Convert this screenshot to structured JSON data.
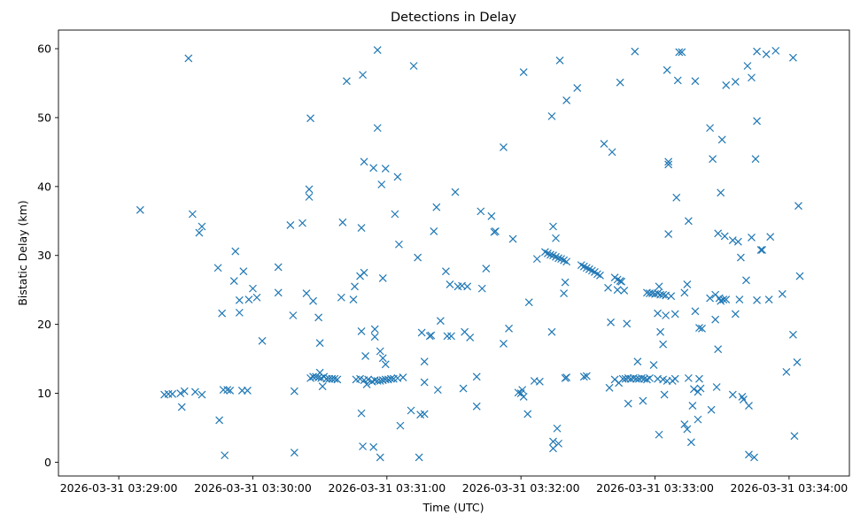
{
  "chart_data": {
    "type": "scatter",
    "title": "Detections in Delay",
    "xlabel": "Time (UTC)",
    "ylabel": "Bistatic Delay (km)",
    "marker": "x",
    "color": "#1f77b4",
    "x_unit": "minutes since 2026-03-31 03:29:00",
    "xlim": [
      -0.45,
      5.45
    ],
    "ylim": [
      -2.0,
      62.7
    ],
    "x_ticks": [
      {
        "value": 0,
        "label": "2026-03-31 03:29:00"
      },
      {
        "value": 1,
        "label": "2026-03-31 03:30:00"
      },
      {
        "value": 2,
        "label": "2026-03-31 03:31:00"
      },
      {
        "value": 3,
        "label": "2026-03-31 03:32:00"
      },
      {
        "value": 4,
        "label": "2026-03-31 03:33:00"
      },
      {
        "value": 5,
        "label": "2026-03-31 03:34:00"
      }
    ],
    "y_ticks": [
      {
        "value": 0,
        "label": "0"
      },
      {
        "value": 10,
        "label": "10"
      },
      {
        "value": 20,
        "label": "20"
      },
      {
        "value": 30,
        "label": "30"
      },
      {
        "value": 40,
        "label": "40"
      },
      {
        "value": 50,
        "label": "50"
      },
      {
        "value": 60,
        "label": "60"
      }
    ],
    "points": [
      [
        0.16,
        36.6
      ],
      [
        0.52,
        58.6
      ],
      [
        0.55,
        36.0
      ],
      [
        0.6,
        33.3
      ],
      [
        0.62,
        34.2
      ],
      [
        0.34,
        9.8
      ],
      [
        0.37,
        9.9
      ],
      [
        0.4,
        9.9
      ],
      [
        0.46,
        10.0
      ],
      [
        0.49,
        10.3
      ],
      [
        0.57,
        10.2
      ],
      [
        0.62,
        9.8
      ],
      [
        0.47,
        8.0
      ],
      [
        0.74,
        28.2
      ],
      [
        0.77,
        21.6
      ],
      [
        0.79,
        1.0
      ],
      [
        0.83,
        10.4
      ],
      [
        0.78,
        10.5
      ],
      [
        0.81,
        10.5
      ],
      [
        0.75,
        6.1
      ],
      [
        0.87,
        30.6
      ],
      [
        0.86,
        26.3
      ],
      [
        0.9,
        23.5
      ],
      [
        0.9,
        21.7
      ],
      [
        0.93,
        27.7
      ],
      [
        0.92,
        10.4
      ],
      [
        0.96,
        10.4
      ],
      [
        0.97,
        23.6
      ],
      [
        1.0,
        25.2
      ],
      [
        1.03,
        23.9
      ],
      [
        1.07,
        17.6
      ],
      [
        1.19,
        28.3
      ],
      [
        1.19,
        24.6
      ],
      [
        1.28,
        34.4
      ],
      [
        1.3,
        21.3
      ],
      [
        1.31,
        10.3
      ],
      [
        1.31,
        1.4
      ],
      [
        1.37,
        34.7
      ],
      [
        1.4,
        24.5
      ],
      [
        1.42,
        39.6
      ],
      [
        1.42,
        38.5
      ],
      [
        1.43,
        49.9
      ],
      [
        1.45,
        23.4
      ],
      [
        1.49,
        21.0
      ],
      [
        1.5,
        17.3
      ],
      [
        1.43,
        12.2
      ],
      [
        1.45,
        12.4
      ],
      [
        1.47,
        12.4
      ],
      [
        1.49,
        12.3
      ],
      [
        1.5,
        13.0
      ],
      [
        1.51,
        12.2
      ],
      [
        1.52,
        11.0
      ],
      [
        1.53,
        12.4
      ],
      [
        1.55,
        12.1
      ],
      [
        1.57,
        12.1
      ],
      [
        1.59,
        12.1
      ],
      [
        1.61,
        12.1
      ],
      [
        1.63,
        12.0
      ],
      [
        1.66,
        23.9
      ],
      [
        1.67,
        34.8
      ],
      [
        1.7,
        55.3
      ],
      [
        1.75,
        23.6
      ],
      [
        1.76,
        25.5
      ],
      [
        1.8,
        27.0
      ],
      [
        1.81,
        34.0
      ],
      [
        1.81,
        19.0
      ],
      [
        1.84,
        15.4
      ],
      [
        1.81,
        7.1
      ],
      [
        1.82,
        2.3
      ],
      [
        1.77,
        12.0
      ],
      [
        1.8,
        12.1
      ],
      [
        1.83,
        11.9
      ],
      [
        1.85,
        11.3
      ],
      [
        1.83,
        43.6
      ],
      [
        1.82,
        56.2
      ],
      [
        1.83,
        27.5
      ],
      [
        1.86,
        12.0
      ],
      [
        1.89,
        11.7
      ],
      [
        1.91,
        11.9
      ],
      [
        1.93,
        11.8
      ],
      [
        1.95,
        11.8
      ],
      [
        1.97,
        11.9
      ],
      [
        1.99,
        12.0
      ],
      [
        2.01,
        12.0
      ],
      [
        2.03,
        12.1
      ],
      [
        2.05,
        12.1
      ],
      [
        2.08,
        12.2
      ],
      [
        1.9,
        42.7
      ],
      [
        1.93,
        59.8
      ],
      [
        1.93,
        48.5
      ],
      [
        1.91,
        19.3
      ],
      [
        1.91,
        18.2
      ],
      [
        1.95,
        16.1
      ],
      [
        1.97,
        15.1
      ],
      [
        1.99,
        14.2
      ],
      [
        1.9,
        2.2
      ],
      [
        1.95,
        0.7
      ],
      [
        1.96,
        40.3
      ],
      [
        1.99,
        42.6
      ],
      [
        1.97,
        26.7
      ],
      [
        2.06,
        36.0
      ],
      [
        2.08,
        41.4
      ],
      [
        2.09,
        31.6
      ],
      [
        2.12,
        12.3
      ],
      [
        2.1,
        5.3
      ],
      [
        2.18,
        7.5
      ],
      [
        2.2,
        57.5
      ],
      [
        2.23,
        29.7
      ],
      [
        2.24,
        0.7
      ],
      [
        2.26,
        18.8
      ],
      [
        2.25,
        6.9
      ],
      [
        2.28,
        7.0
      ],
      [
        2.28,
        11.6
      ],
      [
        2.28,
        14.6
      ],
      [
        2.32,
        18.3
      ],
      [
        2.33,
        18.4
      ],
      [
        2.35,
        33.5
      ],
      [
        2.37,
        37.0
      ],
      [
        2.38,
        10.5
      ],
      [
        2.4,
        20.5
      ],
      [
        2.44,
        27.7
      ],
      [
        2.45,
        18.3
      ],
      [
        2.48,
        18.3
      ],
      [
        2.47,
        25.8
      ],
      [
        2.51,
        39.2
      ],
      [
        2.53,
        25.5
      ],
      [
        2.56,
        25.6
      ],
      [
        2.57,
        10.7
      ],
      [
        2.58,
        18.9
      ],
      [
        2.6,
        25.5
      ],
      [
        2.62,
        18.1
      ],
      [
        2.67,
        8.1
      ],
      [
        2.67,
        12.4
      ],
      [
        2.7,
        36.4
      ],
      [
        2.71,
        25.2
      ],
      [
        2.74,
        28.1
      ],
      [
        2.78,
        35.7
      ],
      [
        2.8,
        33.4
      ],
      [
        2.81,
        33.5
      ],
      [
        2.87,
        45.7
      ],
      [
        2.87,
        17.2
      ],
      [
        2.91,
        19.4
      ],
      [
        2.94,
        32.4
      ],
      [
        2.98,
        10.1
      ],
      [
        3.0,
        10.0
      ],
      [
        3.01,
        10.5
      ],
      [
        3.02,
        9.5
      ],
      [
        3.02,
        56.6
      ],
      [
        3.05,
        7.0
      ],
      [
        3.06,
        23.2
      ],
      [
        3.1,
        11.8
      ],
      [
        3.14,
        11.7
      ],
      [
        3.12,
        29.5
      ],
      [
        3.18,
        30.5
      ],
      [
        3.2,
        30.3
      ],
      [
        3.22,
        30.1
      ],
      [
        3.24,
        30.0
      ],
      [
        3.26,
        29.8
      ],
      [
        3.28,
        29.6
      ],
      [
        3.3,
        29.5
      ],
      [
        3.32,
        29.3
      ],
      [
        3.34,
        29.1
      ],
      [
        3.24,
        3.0
      ],
      [
        3.24,
        2.0
      ],
      [
        3.23,
        18.9
      ],
      [
        3.24,
        34.2
      ],
      [
        3.26,
        32.5
      ],
      [
        3.23,
        50.2
      ],
      [
        3.27,
        4.9
      ],
      [
        3.28,
        2.7
      ],
      [
        3.29,
        58.3
      ],
      [
        3.32,
        24.5
      ],
      [
        3.33,
        26.1
      ],
      [
        3.34,
        52.5
      ],
      [
        3.45,
        28.6
      ],
      [
        3.47,
        28.4
      ],
      [
        3.49,
        28.2
      ],
      [
        3.51,
        28.0
      ],
      [
        3.53,
        27.8
      ],
      [
        3.55,
        27.6
      ],
      [
        3.57,
        27.3
      ],
      [
        3.59,
        27.1
      ],
      [
        3.42,
        54.3
      ],
      [
        3.33,
        12.2
      ],
      [
        3.34,
        12.3
      ],
      [
        3.47,
        12.4
      ],
      [
        3.49,
        12.5
      ],
      [
        3.62,
        46.2
      ],
      [
        3.68,
        45.0
      ],
      [
        3.65,
        25.3
      ],
      [
        3.67,
        20.3
      ],
      [
        3.7,
        26.8
      ],
      [
        3.72,
        26.5
      ],
      [
        3.74,
        26.3
      ],
      [
        3.75,
        26.2
      ],
      [
        3.72,
        25.0
      ],
      [
        3.77,
        24.9
      ],
      [
        3.79,
        20.1
      ],
      [
        3.74,
        55.1
      ],
      [
        3.85,
        59.6
      ],
      [
        3.66,
        10.8
      ],
      [
        3.7,
        12.0
      ],
      [
        3.73,
        11.5
      ],
      [
        3.76,
        12.1
      ],
      [
        3.78,
        12.1
      ],
      [
        3.8,
        12.2
      ],
      [
        3.82,
        12.1
      ],
      [
        3.84,
        12.2
      ],
      [
        3.86,
        12.1
      ],
      [
        3.88,
        12.1
      ],
      [
        3.9,
        12.2
      ],
      [
        3.92,
        12.1
      ],
      [
        3.94,
        12.0
      ],
      [
        3.96,
        12.2
      ],
      [
        3.8,
        8.5
      ],
      [
        3.87,
        14.6
      ],
      [
        3.91,
        8.9
      ],
      [
        3.99,
        14.1
      ],
      [
        3.94,
        24.6
      ],
      [
        3.96,
        24.5
      ],
      [
        3.98,
        24.5
      ],
      [
        4.0,
        24.4
      ],
      [
        4.02,
        24.5
      ],
      [
        4.04,
        24.3
      ],
      [
        4.06,
        24.3
      ],
      [
        4.08,
        24.2
      ],
      [
        4.12,
        24.1
      ],
      [
        4.02,
        21.6
      ],
      [
        4.04,
        18.9
      ],
      [
        4.06,
        17.1
      ],
      [
        4.03,
        25.5
      ],
      [
        4.08,
        21.3
      ],
      [
        4.02,
        12.1
      ],
      [
        4.06,
        12.0
      ],
      [
        4.09,
        11.8
      ],
      [
        4.13,
        11.8
      ],
      [
        4.15,
        12.1
      ],
      [
        4.03,
        4.0
      ],
      [
        4.07,
        9.8
      ],
      [
        4.09,
        56.9
      ],
      [
        4.1,
        43.6
      ],
      [
        4.1,
        43.2
      ],
      [
        4.1,
        33.1
      ],
      [
        4.16,
        38.4
      ],
      [
        4.18,
        59.5
      ],
      [
        4.2,
        59.5
      ],
      [
        4.17,
        55.4
      ],
      [
        4.15,
        21.5
      ],
      [
        4.22,
        24.6
      ],
      [
        4.24,
        25.8
      ],
      [
        4.25,
        35.0
      ],
      [
        4.22,
        5.5
      ],
      [
        4.24,
        4.8
      ],
      [
        4.27,
        2.9
      ],
      [
        4.28,
        8.2
      ],
      [
        4.29,
        10.6
      ],
      [
        4.32,
        10.2
      ],
      [
        4.33,
        12.1
      ],
      [
        4.34,
        10.7
      ],
      [
        4.32,
        6.2
      ],
      [
        4.33,
        19.5
      ],
      [
        4.35,
        19.4
      ],
      [
        4.25,
        12.2
      ],
      [
        4.3,
        21.9
      ],
      [
        4.3,
        55.3
      ],
      [
        4.41,
        48.5
      ],
      [
        4.43,
        44.0
      ],
      [
        4.45,
        20.7
      ],
      [
        4.45,
        24.3
      ],
      [
        4.48,
        23.8
      ],
      [
        4.49,
        23.4
      ],
      [
        4.51,
        23.6
      ],
      [
        4.53,
        23.6
      ],
      [
        4.41,
        23.8
      ],
      [
        4.46,
        10.9
      ],
      [
        4.47,
        16.4
      ],
      [
        4.47,
        33.2
      ],
      [
        4.49,
        39.1
      ],
      [
        4.5,
        46.8
      ],
      [
        4.52,
        32.8
      ],
      [
        4.53,
        54.7
      ],
      [
        4.42,
        7.6
      ],
      [
        4.58,
        32.2
      ],
      [
        4.6,
        55.2
      ],
      [
        4.62,
        32.0
      ],
      [
        4.58,
        9.8
      ],
      [
        4.6,
        21.5
      ],
      [
        4.63,
        23.6
      ],
      [
        4.64,
        29.7
      ],
      [
        4.65,
        9.5
      ],
      [
        4.66,
        9.1
      ],
      [
        4.68,
        26.4
      ],
      [
        4.69,
        57.5
      ],
      [
        4.7,
        8.2
      ],
      [
        4.7,
        1.1
      ],
      [
        4.72,
        32.6
      ],
      [
        4.72,
        55.8
      ],
      [
        4.74,
        0.7
      ],
      [
        4.76,
        59.6
      ],
      [
        4.76,
        23.5
      ],
      [
        4.75,
        44.0
      ],
      [
        4.76,
        49.5
      ],
      [
        4.79,
        30.8
      ],
      [
        4.8,
        30.8
      ],
      [
        4.83,
        59.2
      ],
      [
        4.85,
        23.6
      ],
      [
        4.86,
        32.7
      ],
      [
        4.9,
        59.7
      ],
      [
        4.95,
        24.4
      ],
      [
        4.98,
        13.1
      ],
      [
        5.03,
        58.7
      ],
      [
        5.03,
        18.5
      ],
      [
        5.04,
        3.8
      ],
      [
        5.06,
        14.5
      ],
      [
        5.07,
        37.2
      ],
      [
        5.08,
        27.0
      ]
    ]
  }
}
